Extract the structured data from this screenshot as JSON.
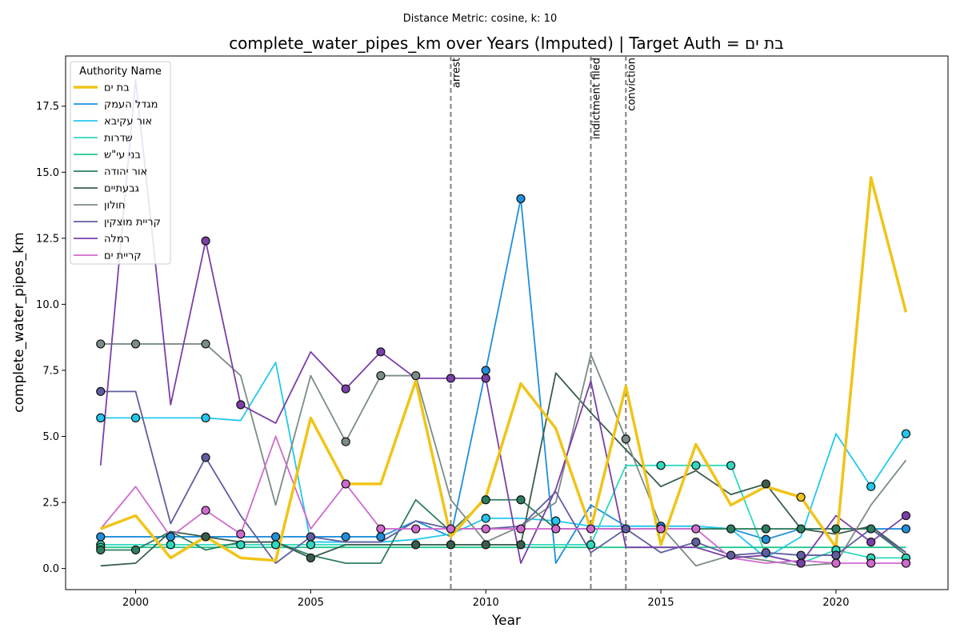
{
  "chart_data": {
    "type": "line",
    "suptitle": "Distance Metric: cosine, k: 10",
    "title": "complete_water_pipes_km over Years (Imputed) | Target Auth = בת ים",
    "xlabel": "Year",
    "ylabel": "complete_water_pipes_km",
    "xlim": [
      1998,
      2023.2
    ],
    "ylim": [
      -0.8,
      19.4
    ],
    "xticks": [
      2000,
      2005,
      2010,
      2015,
      2020
    ],
    "xtick_labels": [
      "2000",
      "2005",
      "2010",
      "2015",
      "2020"
    ],
    "yticks": [
      0,
      2.5,
      5,
      7.5,
      10,
      12.5,
      15,
      17.5
    ],
    "ytick_labels": [
      "0.0",
      "2.5",
      "5.0",
      "7.5",
      "10.0",
      "12.5",
      "15.0",
      "17.5"
    ],
    "grid": false,
    "legend_title": "Authority Name",
    "legend_position": "top-left",
    "years": [
      1999,
      2000,
      2001,
      2002,
      2003,
      2004,
      2005,
      2006,
      2007,
      2008,
      2009,
      2010,
      2011,
      2012,
      2013,
      2014,
      2015,
      2016,
      2017,
      2018,
      2019,
      2020,
      2021,
      2022
    ],
    "events": [
      {
        "year": 2009,
        "label": "arrest"
      },
      {
        "year": 2013,
        "label": "indictment filed"
      },
      {
        "year": 2014,
        "label": "conviction"
      }
    ],
    "series": [
      {
        "name": "בת ים",
        "color": "#f0c419",
        "target": true,
        "values": [
          1.5,
          2.0,
          0.4,
          1.2,
          0.4,
          0.3,
          5.7,
          3.2,
          3.2,
          7.1,
          1.2,
          2.7,
          7.0,
          5.3,
          1.5,
          6.9,
          0.9,
          4.7,
          2.4,
          3.1,
          2.7,
          0.8,
          14.8,
          9.7
        ],
        "markers": [
          0,
          0,
          0,
          0,
          0,
          0,
          0,
          0,
          0,
          0,
          0,
          0,
          0,
          0,
          0,
          0,
          0,
          0,
          0,
          0,
          1,
          0,
          0,
          0
        ]
      },
      {
        "name": "מגדל העמק",
        "color": "#1f8fdc",
        "values": [
          1.2,
          1.2,
          1.2,
          1.2,
          1.2,
          1.2,
          1.2,
          1.2,
          1.2,
          1.8,
          1.2,
          7.5,
          14.0,
          0.2,
          2.4,
          1.6,
          1.6,
          1.6,
          1.5,
          1.1,
          1.5,
          1.5,
          1.5,
          1.5
        ],
        "markers": [
          1,
          0,
          1,
          1,
          0,
          1,
          0,
          1,
          1,
          0,
          0,
          1,
          1,
          0,
          0,
          0,
          1,
          0,
          0,
          1,
          0,
          0,
          0,
          1
        ]
      },
      {
        "name": "אור עקיבא",
        "color": "#22c8ee",
        "values": [
          5.7,
          5.7,
          5.7,
          5.7,
          5.6,
          7.8,
          1.0,
          1.0,
          1.0,
          1.1,
          1.3,
          1.9,
          1.9,
          1.8,
          1.6,
          1.6,
          1.6,
          1.6,
          1.5,
          0.4,
          1.2,
          5.1,
          3.1,
          5.1
        ],
        "markers": [
          1,
          1,
          0,
          1,
          0,
          0,
          0,
          0,
          0,
          0,
          0,
          1,
          0,
          1,
          0,
          0,
          0,
          0,
          0,
          0,
          0,
          0,
          1,
          1
        ]
      },
      {
        "name": "שדרות",
        "color": "#2fd9bd",
        "values": [
          0.9,
          0.9,
          0.9,
          0.9,
          0.9,
          0.9,
          0.9,
          0.9,
          0.9,
          0.9,
          0.9,
          0.9,
          0.9,
          0.9,
          0.9,
          3.9,
          3.9,
          3.9,
          3.9,
          0.5,
          0.2,
          0.7,
          0.4,
          0.4
        ],
        "markers": [
          1,
          0,
          1,
          0,
          1,
          1,
          1,
          0,
          0,
          0,
          0,
          0,
          0,
          0,
          1,
          0,
          1,
          1,
          1,
          0,
          0,
          1,
          1,
          1
        ]
      },
      {
        "name": "בני עי\"ש",
        "color": "#1ec98f",
        "values": [
          0.8,
          0.8,
          0.8,
          0.8,
          0.8,
          0.8,
          0.8,
          0.8,
          0.8,
          0.8,
          0.8,
          0.8,
          0.8,
          0.8,
          0.8,
          0.8,
          0.8,
          0.8,
          0.8,
          0.8,
          0.8,
          0.8,
          0.8,
          0.8
        ],
        "markers": [
          1,
          0,
          0,
          0,
          0,
          0,
          0,
          0,
          0,
          0,
          0,
          0,
          0,
          0,
          0,
          0,
          0,
          0,
          0,
          0,
          0,
          0,
          0,
          0
        ]
      },
      {
        "name": "אור יהודה",
        "color": "#2e7d5f",
        "values": [
          0.7,
          0.7,
          1.4,
          0.7,
          1.0,
          1.0,
          0.5,
          0.2,
          0.2,
          2.6,
          1.4,
          2.6,
          2.6,
          1.5,
          1.5,
          1.5,
          1.5,
          1.5,
          1.5,
          1.5,
          1.5,
          1.5,
          1.5,
          0.5
        ],
        "markers": [
          1,
          1,
          0,
          0,
          0,
          0,
          0,
          0,
          0,
          0,
          0,
          1,
          1,
          0,
          0,
          0,
          0,
          0,
          1,
          1,
          1,
          1,
          1,
          0
        ]
      },
      {
        "name": "גבעתיים",
        "color": "#3a5e4c",
        "values": [
          0.1,
          0.2,
          1.4,
          1.2,
          1.0,
          1.0,
          0.4,
          0.9,
          0.9,
          0.9,
          0.9,
          0.9,
          0.9,
          7.4,
          5.9,
          4.5,
          3.1,
          3.7,
          2.8,
          3.2,
          1.5,
          1.3,
          1.6,
          0.6
        ],
        "markers": [
          0,
          0,
          0,
          1,
          0,
          0,
          1,
          0,
          0,
          1,
          1,
          1,
          1,
          0,
          0,
          0,
          0,
          0,
          0,
          1,
          0,
          0,
          0,
          0
        ]
      },
      {
        "name": "חולון",
        "color": "#7c8c88",
        "values": [
          8.5,
          8.5,
          8.5,
          8.5,
          7.3,
          2.4,
          7.3,
          4.8,
          7.3,
          7.3,
          2.6,
          1.0,
          1.6,
          2.5,
          8.1,
          4.9,
          1.6,
          0.1,
          0.5,
          0.3,
          0.1,
          0.2,
          2.4,
          4.1
        ],
        "markers": [
          1,
          1,
          0,
          1,
          0,
          0,
          0,
          1,
          1,
          1,
          0,
          0,
          0,
          0,
          0,
          1,
          0,
          0,
          0,
          0,
          0,
          0,
          0,
          0
        ]
      },
      {
        "name": "קריית מוצקין",
        "color": "#5f5ea0",
        "values": [
          6.7,
          6.7,
          1.7,
          4.2,
          2.0,
          0.2,
          1.2,
          1.0,
          1.0,
          1.8,
          1.5,
          1.5,
          1.6,
          2.9,
          0.6,
          1.5,
          0.6,
          1.0,
          0.5,
          0.6,
          0.5,
          0.5,
          1.5,
          0.6
        ],
        "markers": [
          1,
          0,
          0,
          1,
          0,
          0,
          1,
          0,
          0,
          0,
          0,
          0,
          0,
          0,
          0,
          1,
          0,
          1,
          1,
          1,
          1,
          1,
          0,
          0
        ]
      },
      {
        "name": "רמלה",
        "color": "#7b3fa8",
        "values": [
          3.9,
          18.5,
          6.2,
          12.4,
          6.2,
          5.5,
          8.2,
          6.8,
          8.2,
          7.2,
          7.2,
          7.2,
          0.2,
          3.0,
          7.1,
          0.8,
          0.8,
          0.8,
          0.4,
          0.5,
          0.2,
          2.0,
          1.0,
          2.0
        ],
        "markers": [
          0,
          0,
          0,
          1,
          1,
          0,
          0,
          1,
          1,
          0,
          1,
          1,
          0,
          0,
          0,
          0,
          0,
          0,
          0,
          0,
          1,
          0,
          1,
          1
        ]
      },
      {
        "name": "קריית ים",
        "color": "#d06ad0",
        "values": [
          1.5,
          3.1,
          1.2,
          2.2,
          1.3,
          5.0,
          1.5,
          3.2,
          1.5,
          1.5,
          1.5,
          1.5,
          1.5,
          1.5,
          1.5,
          1.5,
          1.5,
          1.5,
          0.4,
          0.2,
          0.3,
          0.2,
          0.2,
          0.2
        ],
        "markers": [
          0,
          0,
          0,
          1,
          1,
          0,
          0,
          1,
          1,
          1,
          1,
          1,
          1,
          1,
          1,
          0,
          1,
          1,
          0,
          0,
          0,
          1,
          1,
          1
        ]
      }
    ]
  }
}
